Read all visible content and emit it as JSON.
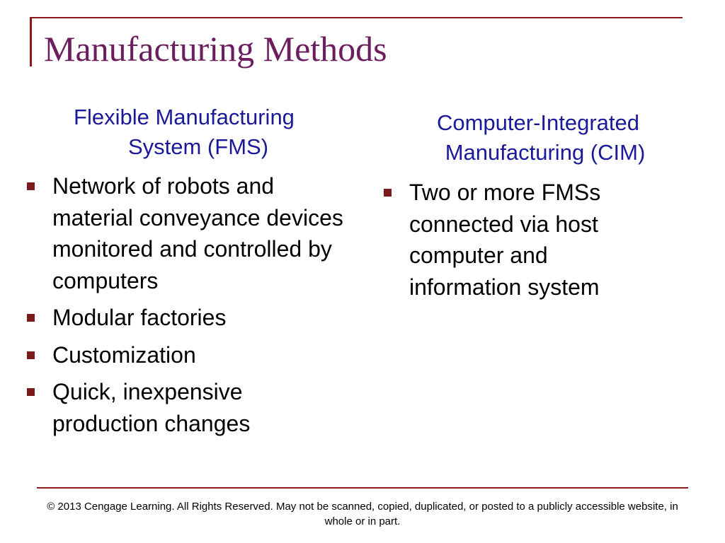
{
  "title": "Manufacturing Methods",
  "left": {
    "heading_line1": "Flexible Manufacturing",
    "heading_line2": "System (FMS)",
    "bullets": [
      "Network of robots and material conveyance devices monitored and controlled by computers",
      "Modular factories",
      "Customization",
      "Quick, inexpensive production changes"
    ]
  },
  "right": {
    "heading_line1": "Computer-Integrated",
    "heading_line2": "Manufacturing (CIM)",
    "bullets": [
      "Two or more FMSs connected via host computer and information system"
    ]
  },
  "footer": "© 2013 Cengage Learning.  All Rights Reserved.  May not be scanned, copied, duplicated, or posted to a publicly accessible website, in whole or in part.",
  "colors": {
    "title": "#6b1d5e",
    "heading": "#1a1a99",
    "accent": "#8b1a1a"
  }
}
